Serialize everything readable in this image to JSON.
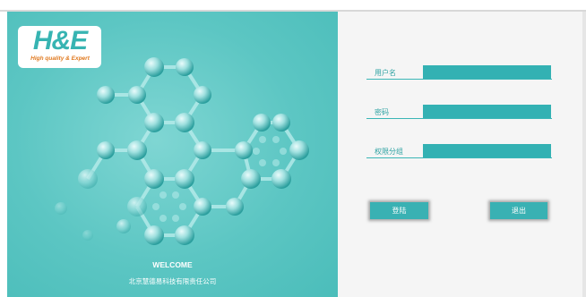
{
  "brand": {
    "logo_text": "H&E",
    "logo_tagline": "High quality & Expert",
    "accent_color": "#37b4b2",
    "tagline_color": "#e0791f"
  },
  "left": {
    "welcome": "WELCOME",
    "company": "北京慧德易科技有限责任公司"
  },
  "form": {
    "username_label": "用户名",
    "username_value": "",
    "password_label": "密码",
    "password_value": "",
    "group_label": "权限分组",
    "group_value": "",
    "field_color": "#33b1b3"
  },
  "buttons": {
    "login_label": "登陆",
    "exit_label": "退出"
  }
}
